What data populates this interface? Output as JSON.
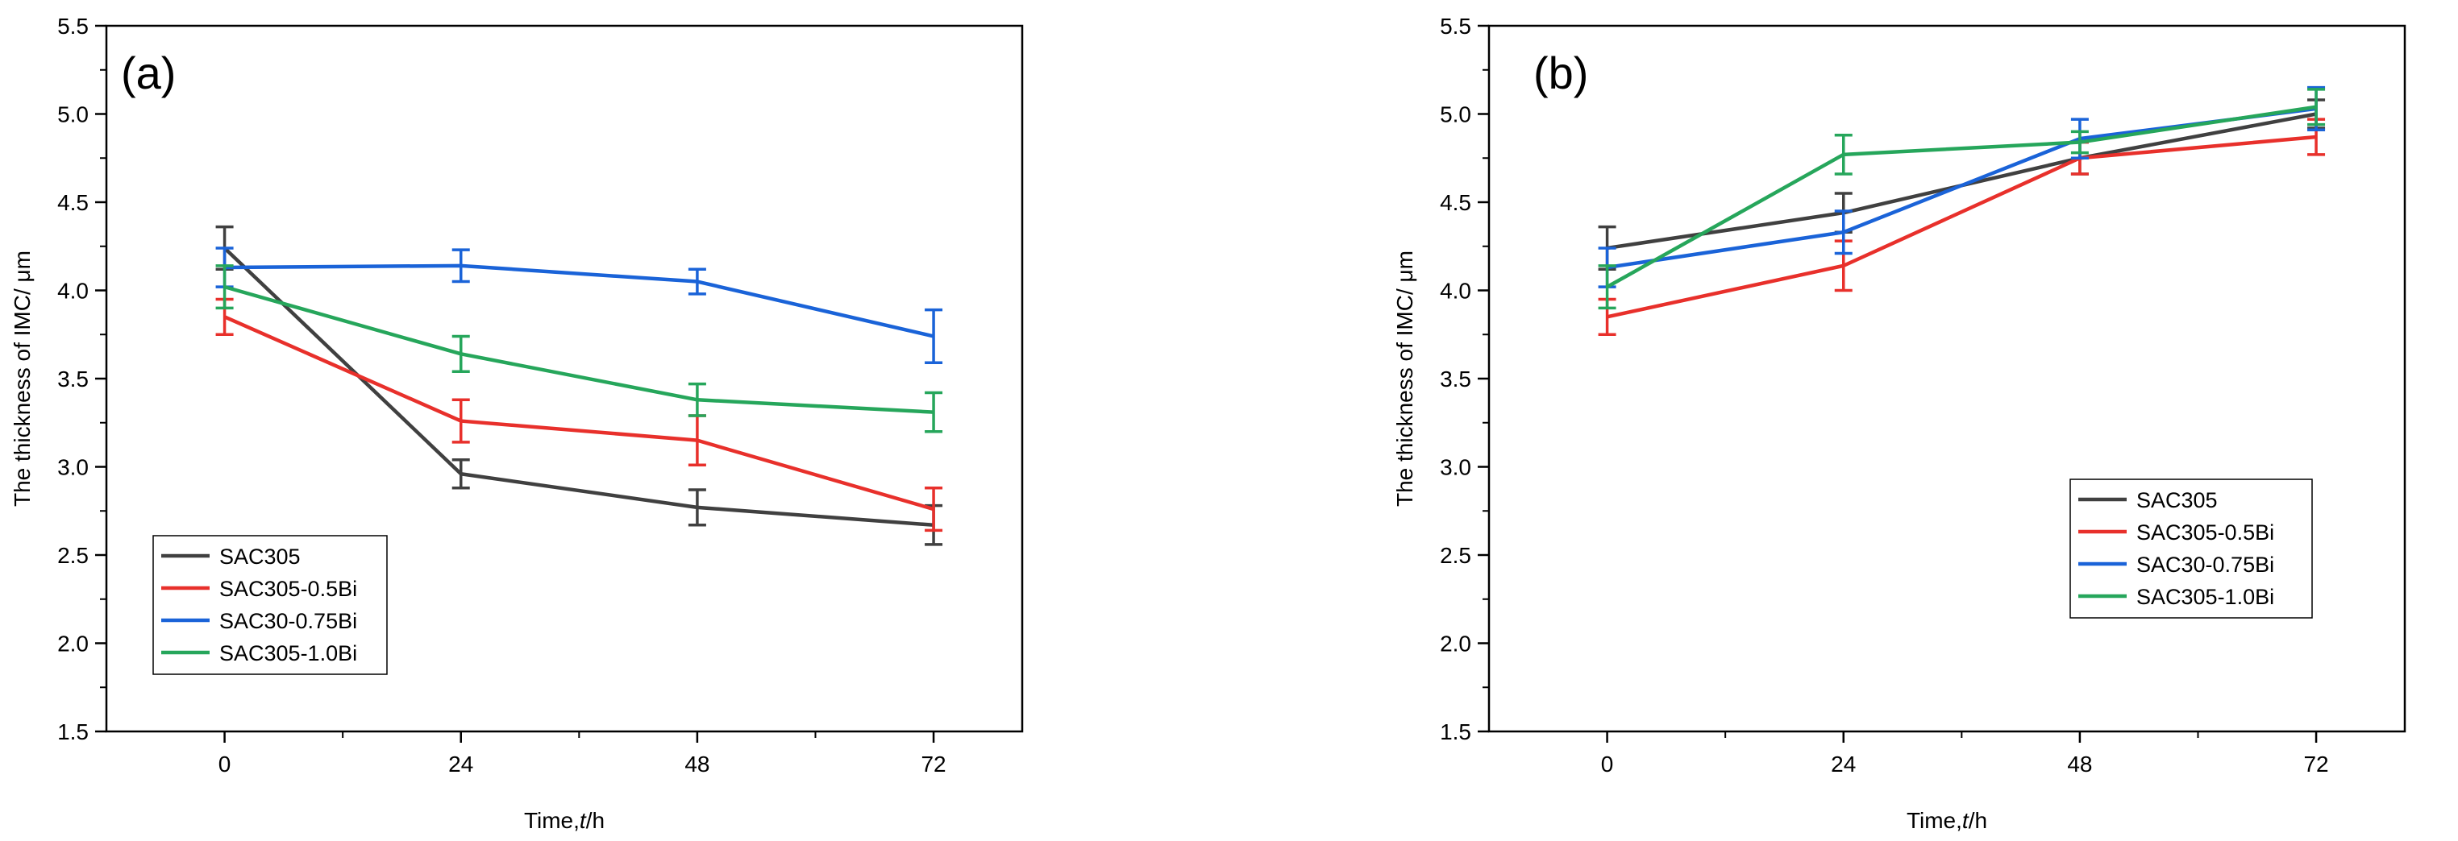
{
  "chart_data": [
    {
      "type": "line",
      "panel_label": "(a)",
      "xlabel_main": "Time,",
      "xlabel_italic": "t",
      "xlabel_unit": "/h",
      "ylabel": "The thickness of IMC/ μm",
      "x": [
        0,
        24,
        48,
        72
      ],
      "x_ticks": [
        "0",
        "24",
        "48",
        "72"
      ],
      "xlim": [
        -12,
        81
      ],
      "ylim": [
        1.5,
        5.5
      ],
      "y_ticks": [
        "1.5",
        "2.0",
        "2.5",
        "3.0",
        "3.5",
        "4.0",
        "4.5",
        "5.0",
        "5.5"
      ],
      "legend_position": "lower-left",
      "series": [
        {
          "name": "SAC305",
          "color": "#404040",
          "values": [
            4.24,
            2.96,
            2.77,
            2.67
          ],
          "errors": [
            0.12,
            0.08,
            0.1,
            0.11
          ]
        },
        {
          "name": "SAC305-0.5Bi",
          "color": "#e8302b",
          "values": [
            3.85,
            3.26,
            3.15,
            2.76
          ],
          "errors": [
            0.1,
            0.12,
            0.14,
            0.12
          ]
        },
        {
          "name": "SAC30-0.75Bi",
          "color": "#1a63d8",
          "values": [
            4.13,
            4.14,
            4.05,
            3.74
          ],
          "errors": [
            0.11,
            0.09,
            0.07,
            0.15
          ]
        },
        {
          "name": "SAC305-1.0Bi",
          "color": "#26a65b",
          "values": [
            4.02,
            3.64,
            3.38,
            3.31
          ],
          "errors": [
            0.12,
            0.1,
            0.09,
            0.11
          ]
        }
      ]
    },
    {
      "type": "line",
      "panel_label": "(b)",
      "xlabel_main": "Time,",
      "xlabel_italic": "t",
      "xlabel_unit": "/h",
      "ylabel": "The thickness of IMC/ μm",
      "x": [
        0,
        24,
        48,
        72
      ],
      "x_ticks": [
        "0",
        "24",
        "48",
        "72"
      ],
      "xlim": [
        -12,
        81
      ],
      "ylim": [
        1.5,
        5.5
      ],
      "y_ticks": [
        "1.5",
        "2.0",
        "2.5",
        "3.0",
        "3.5",
        "4.0",
        "4.5",
        "5.0",
        "5.5"
      ],
      "legend_position": "center-right",
      "series": [
        {
          "name": "SAC305",
          "color": "#404040",
          "values": [
            4.24,
            4.44,
            4.75,
            5.0
          ],
          "errors": [
            0.12,
            0.11,
            0.09,
            0.08
          ]
        },
        {
          "name": "SAC305-0.5Bi",
          "color": "#e8302b",
          "values": [
            3.85,
            4.14,
            4.75,
            4.87
          ],
          "errors": [
            0.1,
            0.14,
            0.09,
            0.1
          ]
        },
        {
          "name": "SAC30-0.75Bi",
          "color": "#1a63d8",
          "values": [
            4.13,
            4.33,
            4.86,
            5.03
          ],
          "errors": [
            0.11,
            0.12,
            0.11,
            0.12
          ]
        },
        {
          "name": "SAC305-1.0Bi",
          "color": "#26a65b",
          "values": [
            4.02,
            4.77,
            4.84,
            5.04
          ],
          "errors": [
            0.12,
            0.11,
            0.06,
            0.1
          ]
        }
      ]
    }
  ]
}
